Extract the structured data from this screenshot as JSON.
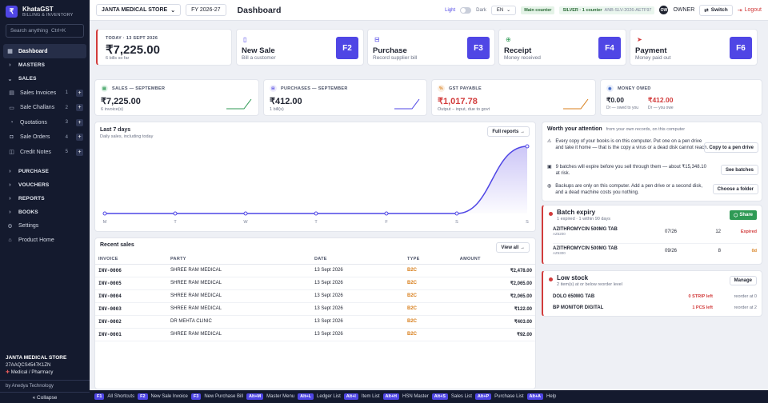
{
  "brand": {
    "name": "KhataGST",
    "subtitle": "BILLING & INVENTORY",
    "logo": "₹"
  },
  "sidebar": {
    "search_placeholder": "Search anything",
    "search_shortcut": "Ctrl+K",
    "dashboard": "Dashboard",
    "masters": "MASTERS",
    "sales": "SALES",
    "sales_items": [
      {
        "label": "Sales Invoices",
        "count": "1"
      },
      {
        "label": "Sale Challans",
        "count": "2"
      },
      {
        "label": "Quotations",
        "count": "3"
      },
      {
        "label": "Sale Orders",
        "count": "4"
      },
      {
        "label": "Credit Notes",
        "count": "5"
      }
    ],
    "purchase": "PURCHASE",
    "vouchers": "VOUCHERS",
    "reports": "REPORTS",
    "books": "BOOKS",
    "settings": "Settings",
    "product_home": "Product Home",
    "company_name": "JANTA MEDICAL STORE",
    "gstin": "27AAQCS4547K1ZN",
    "business_type": "Medical / Pharmacy",
    "by": "by Anedya Technology",
    "collapse": "« Collapse"
  },
  "topbar": {
    "company": "JANTA MEDICAL STORE",
    "fy": "FY 2026-27",
    "title": "Dashboard",
    "light": "Light",
    "dark": "Dark",
    "lang": "EN",
    "counter": "Main counter",
    "tier": "SILVER · 1 counter",
    "tier_code": "ANB-SLV-2026-AETF97",
    "avatar": "OW",
    "role": "OWNER",
    "switch": "Switch",
    "logout": "Logout"
  },
  "today": {
    "label": "TODAY · 13 SEPT 2026",
    "value": "₹7,225.00",
    "sub": "6 bills so far"
  },
  "quick_actions": [
    {
      "title": "New Sale",
      "sub": "Bill a customer",
      "key": "F2",
      "color": "#4f46e5"
    },
    {
      "title": "Purchase",
      "sub": "Record supplier bill",
      "key": "F3",
      "color": "#4f46e5"
    },
    {
      "title": "Receipt",
      "sub": "Money received",
      "key": "F4",
      "color": "#2f9a55"
    },
    {
      "title": "Payment",
      "sub": "Money paid out",
      "key": "F6",
      "color": "#d23b3b"
    }
  ],
  "stats": {
    "sales": {
      "label": "SALES — SEPTEMBER",
      "value": "₹7,225.00",
      "sub": "6 invoice(s)"
    },
    "purchases": {
      "label": "PURCHASES — SEPTEMBER",
      "value": "₹412.00",
      "sub": "1 bill(s)"
    },
    "gst": {
      "label": "GST PAYABLE",
      "value": "₹1,017.78",
      "sub": "Output − input, due to govt"
    },
    "owed": {
      "label": "MONEY OWED",
      "v1": "₹0.00",
      "s1": "Dr — owed to you",
      "v2": "₹412.00",
      "s2": "Dr — you owe"
    }
  },
  "chart_data": {
    "type": "line",
    "title": "Last 7 days",
    "subtitle": "Daily sales, including today",
    "categories": [
      "M",
      "T",
      "W",
      "T",
      "F",
      "S",
      "S"
    ],
    "values": [
      0,
      0,
      0,
      0,
      0,
      0,
      7225
    ],
    "ylim": [
      0,
      7225
    ],
    "grid": false,
    "full_reports": "Full reports →"
  },
  "recent_sales": {
    "title": "Recent sales",
    "view_all": "View all →",
    "headers": [
      "INVOICE",
      "PARTY",
      "DATE",
      "TYPE",
      "AMOUNT"
    ],
    "rows": [
      [
        "INV-0006",
        "SHREE RAM MEDICAL",
        "13 Sept 2026",
        "B2C",
        "₹2,478.00"
      ],
      [
        "INV-0005",
        "SHREE RAM MEDICAL",
        "13 Sept 2026",
        "B2C",
        "₹2,065.00"
      ],
      [
        "INV-0004",
        "SHREE RAM MEDICAL",
        "13 Sept 2026",
        "B2C",
        "₹2,065.00"
      ],
      [
        "INV-0003",
        "SHREE RAM MEDICAL",
        "13 Sept 2026",
        "B2C",
        "₹122.00"
      ],
      [
        "INV-0002",
        "DR MEHTA CLINIC",
        "13 Sept 2026",
        "B2C",
        "₹403.00"
      ],
      [
        "INV-0001",
        "SHREE RAM MEDICAL",
        "13 Sept 2026",
        "B2C",
        "₹92.00"
      ]
    ]
  },
  "attention": {
    "title": "Worth your attention",
    "sub": "from your own records, on this computer",
    "items": [
      {
        "text": "Every copy of your books is on this computer. Put one on a pen drive and take it home — that is the copy a virus or a dead disk cannot reach.",
        "button": "Copy to a pen drive"
      },
      {
        "text": "9 batches will expire before you sell through them — about ₹15,348.10 at risk.",
        "button": "See batches"
      },
      {
        "text": "Backups are only on this computer. Add a pen drive or a second disk, and a dead machine costs you nothing.",
        "button": "Choose a folder"
      }
    ]
  },
  "batch_expiry": {
    "title": "Batch expiry",
    "sub": "1 expired · 1 within 90 days",
    "share": "Share",
    "rows": [
      {
        "name": "AZITHROMYCIN 500MG TAB",
        "code": "AZ5200",
        "date": "07/26",
        "qty": "12",
        "status": "Expired"
      },
      {
        "name": "AZITHROMYCIN 500MG TAB",
        "code": "AZ5300",
        "date": "09/26",
        "qty": "8",
        "status": "0d"
      }
    ]
  },
  "low_stock": {
    "title": "Low stock",
    "sub": "2 item(s) at or below reorder level",
    "manage": "Manage",
    "rows": [
      {
        "name": "DOLO 650MG TAB",
        "left": "0 STRIP left",
        "reorder": "reorder at 0"
      },
      {
        "name": "BP MONITOR DIGITAL",
        "left": "1 PCS left",
        "reorder": "reorder at 2"
      }
    ]
  },
  "shortcuts": [
    {
      "key": "F1",
      "label": "All Shortcuts"
    },
    {
      "key": "F2",
      "label": "New Sale Invoice"
    },
    {
      "key": "F3",
      "label": "New Purchase Bill"
    },
    {
      "key": "Alt+M",
      "label": "Master Menu"
    },
    {
      "key": "Alt+L",
      "label": "Ledger List"
    },
    {
      "key": "Alt+I",
      "label": "Item List"
    },
    {
      "key": "Alt+H",
      "label": "HSN Master"
    },
    {
      "key": "Alt+S",
      "label": "Sales List"
    },
    {
      "key": "Alt+P",
      "label": "Purchase List"
    },
    {
      "key": "Alt+A",
      "label": "Help"
    }
  ]
}
